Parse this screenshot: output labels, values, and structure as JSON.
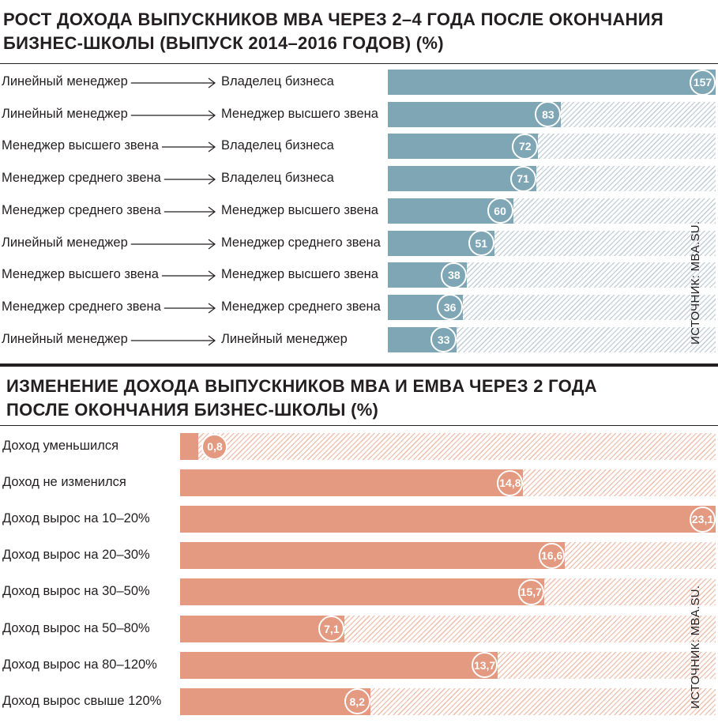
{
  "chart_data": [
    {
      "type": "bar",
      "orientation": "horizontal",
      "title": "РОСТ ДОХОДА ВЫПУСКНИКОВ MBA ЧЕРЕЗ 2–4 ГОДА ПОСЛЕ ОКОНЧАНИЯ БИЗНЕС-ШКОЛЫ (ВЫПУСК 2014–2016 ГОДОВ) (%)",
      "source": "ИСТОЧНИК: MBA.SU.",
      "color": "#7ea6b5",
      "xlim": [
        0,
        157
      ],
      "rows": [
        {
          "from": "Линейный менеджер",
          "to": "Владелец бизнеса",
          "value": 157,
          "value_label": "157"
        },
        {
          "from": "Линейный менеджер",
          "to": "Менеджер высшего звена",
          "value": 83,
          "value_label": "83"
        },
        {
          "from": "Менеджер высшего звена",
          "to": "Владелец бизнеса",
          "value": 72,
          "value_label": "72"
        },
        {
          "from": "Менеджер среднего звена",
          "to": "Владелец бизнеса",
          "value": 71,
          "value_label": "71"
        },
        {
          "from": "Менеджер среднего звена",
          "to": "Менеджер высшего звена",
          "value": 60,
          "value_label": "60"
        },
        {
          "from": "Линейный менеджер",
          "to": "Менеджер среднего звена",
          "value": 51,
          "value_label": "51"
        },
        {
          "from": "Менеджер высшего звена",
          "to": "Менеджер высшего звена",
          "value": 38,
          "value_label": "38"
        },
        {
          "from": "Менеджер среднего звена",
          "to": "Менеджер среднего звена",
          "value": 36,
          "value_label": "36"
        },
        {
          "from": "Линейный менеджер",
          "to": "Линейный менеджер",
          "value": 33,
          "value_label": "33"
        }
      ]
    },
    {
      "type": "bar",
      "orientation": "horizontal",
      "title": "ИЗМЕНЕНИЕ ДОХОДА ВЫПУСКНИКОВ MBA И EMBA ЧЕРЕЗ 2 ГОДА ПОСЛЕ ОКОНЧАНИЯ БИЗНЕС-ШКОЛЫ (%)",
      "source": "ИСТОЧНИК: MBA.SU.",
      "color": "#e39a80",
      "xlim": [
        0,
        23.1
      ],
      "rows": [
        {
          "label": "Доход уменьшился",
          "value": 0.8,
          "value_label": "0,8"
        },
        {
          "label": "Доход не изменился",
          "value": 14.8,
          "value_label": "14,8"
        },
        {
          "label": "Доход вырос на 10–20%",
          "value": 23.1,
          "value_label": "23,1"
        },
        {
          "label": "Доход вырос на 20–30%",
          "value": 16.6,
          "value_label": "16,6"
        },
        {
          "label": "Доход вырос на 30–50%",
          "value": 15.7,
          "value_label": "15,7"
        },
        {
          "label": "Доход вырос на 50–80%",
          "value": 7.1,
          "value_label": "7,1"
        },
        {
          "label": "Доход вырос на 80–120%",
          "value": 13.7,
          "value_label": "13,7"
        },
        {
          "label": "Доход вырос свыше 120%",
          "value": 8.2,
          "value_label": "8,2"
        }
      ]
    }
  ]
}
